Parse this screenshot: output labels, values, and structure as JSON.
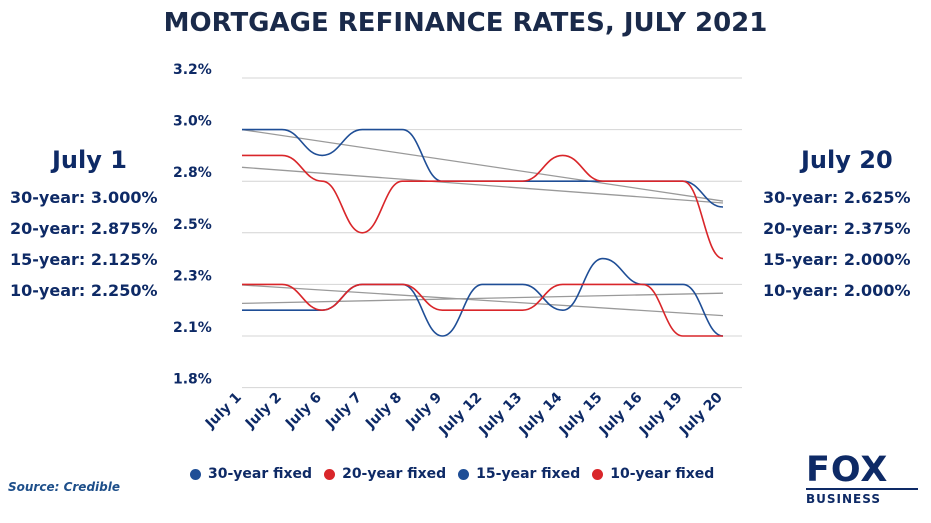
{
  "header": {
    "title": "MORTGAGE REFINANCE RATES, JULY 2021"
  },
  "left_panel": {
    "heading": "July 1",
    "rows": [
      "30-year: 3.000%",
      "20-year: 2.875%",
      "15-year: 2.125%",
      "10-year: 2.250%"
    ]
  },
  "right_panel": {
    "heading": "July 20",
    "rows": [
      "30-year: 2.625%",
      "20-year: 2.375%",
      "15-year: 2.000%",
      "10-year: 2.000%"
    ]
  },
  "footer": {
    "source": "Source: Credible",
    "logo_top": "FOX",
    "logo_bottom": "BUSINESS"
  },
  "colors": {
    "blue": "#1f4e96",
    "red": "#d9262a",
    "trend": "#9a9a9a",
    "grid": "#d4d4d4",
    "text": "#0e2a66"
  },
  "chart_data": {
    "type": "line",
    "title": "MORTGAGE REFINANCE RATES, JULY 2021",
    "xlabel": "",
    "ylabel": "",
    "categories": [
      "July 1",
      "July 2",
      "July 6",
      "July 7",
      "July 8",
      "July 9",
      "July 12",
      "July 13",
      "July 14",
      "July 15",
      "July 16",
      "July 19",
      "July 20"
    ],
    "y_tick_labels": [
      "3.2%",
      "3.0%",
      "2.8%",
      "2.5%",
      "2.3%",
      "2.1%",
      "1.8%"
    ],
    "ylim": [
      1.75,
      3.25
    ],
    "grid": true,
    "legend_position": "bottom",
    "trendlines": true,
    "series": [
      {
        "name": "30-year fixed",
        "color": "#1f4e96",
        "values": [
          3.0,
          3.0,
          2.875,
          3.0,
          3.0,
          2.75,
          2.75,
          2.75,
          2.75,
          2.75,
          2.75,
          2.75,
          2.625
        ]
      },
      {
        "name": "20-year fixed",
        "color": "#d9262a",
        "values": [
          2.875,
          2.875,
          2.75,
          2.5,
          2.75,
          2.75,
          2.75,
          2.75,
          2.875,
          2.75,
          2.75,
          2.75,
          2.375
        ]
      },
      {
        "name": "15-year fixed",
        "color": "#1f4e96",
        "values": [
          2.125,
          2.125,
          2.125,
          2.25,
          2.25,
          2.0,
          2.25,
          2.25,
          2.125,
          2.375,
          2.25,
          2.25,
          2.0
        ]
      },
      {
        "name": "10-year fixed",
        "color": "#d9262a",
        "values": [
          2.25,
          2.25,
          2.125,
          2.25,
          2.25,
          2.125,
          2.125,
          2.125,
          2.25,
          2.25,
          2.25,
          2.0,
          2.0
        ]
      }
    ]
  }
}
